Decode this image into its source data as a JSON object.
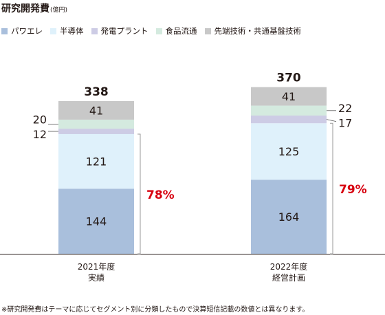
{
  "header": {
    "title": "研究開発費",
    "unit": "(億円)"
  },
  "colors": {
    "series": [
      "#a9bfdc",
      "#dff1fb",
      "#cdcce5",
      "#d4eadf",
      "#c8c8c8"
    ],
    "share_label": "#d7000f",
    "axis": "#231815",
    "bracket": "#9a9a9a"
  },
  "footnote": "※研究開発費はテーマに応じてセグメント別に分類したもので決算短信記載の数値とは異なります。",
  "chart_data": {
    "type": "bar",
    "stacked": true,
    "categories": [
      {
        "year": "2021年度",
        "kind": "実績"
      },
      {
        "year": "2022年度",
        "kind": "経営計画"
      }
    ],
    "series": [
      {
        "name": "パワエレ",
        "values": [
          144,
          164
        ]
      },
      {
        "name": "半導体",
        "values": [
          121,
          125
        ]
      },
      {
        "name": "発電プラント",
        "values": [
          12,
          17
        ]
      },
      {
        "name": "食品流通",
        "values": [
          20,
          22
        ]
      },
      {
        "name": "先端技術・共通基盤技術",
        "values": [
          41,
          41
        ]
      }
    ],
    "totals": [
      338,
      370
    ],
    "share_labels": [
      "78%",
      "79%"
    ],
    "ylim": [
      0,
      370
    ],
    "grid": false,
    "legend": "top"
  }
}
